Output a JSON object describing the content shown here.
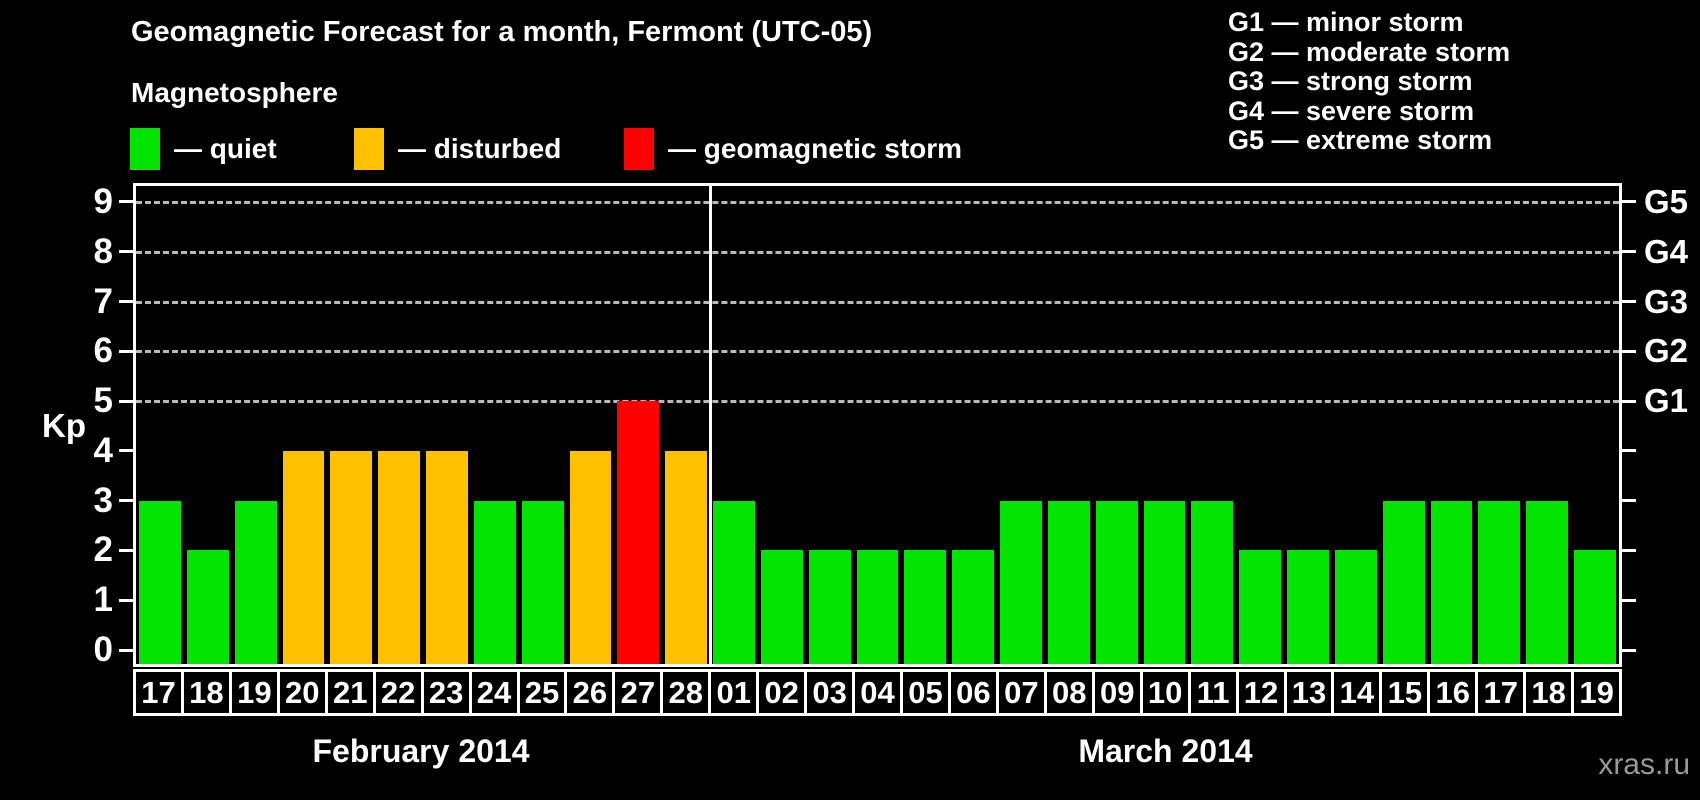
{
  "title": "Geomagnetic Forecast for a month, Fermont (UTC-05)",
  "subtitle": "Magnetosphere",
  "legend": {
    "items": [
      {
        "key": "quiet",
        "label": "— quiet"
      },
      {
        "key": "disturbed",
        "label": "— disturbed"
      },
      {
        "key": "storm",
        "label": "— geomagnetic storm"
      }
    ]
  },
  "g_legend": [
    "G1 — minor storm",
    "G2 — moderate storm",
    "G3 — strong storm",
    "G4 — severe storm",
    "G5 — extreme storm"
  ],
  "y_axis": {
    "label": "Kp",
    "ticks": [
      0,
      1,
      2,
      3,
      4,
      5,
      6,
      7,
      8,
      9
    ]
  },
  "right_axis": {
    "labels": {
      "5": "G1",
      "6": "G2",
      "7": "G3",
      "8": "G4",
      "9": "G5"
    }
  },
  "watermark": "xras.ru",
  "chart_data": {
    "type": "bar",
    "ylabel": "Kp",
    "ylim": [
      0,
      9
    ],
    "gridlines_at": [
      5,
      6,
      7,
      8,
      9
    ],
    "grid": "dashed",
    "states": {
      "quiet": "#00e400",
      "disturbed": "#ffc000",
      "storm": "#ff0000"
    },
    "months": [
      {
        "label": "February 2014",
        "days": [
          {
            "day": "17",
            "kp": 3,
            "state": "quiet"
          },
          {
            "day": "18",
            "kp": 2,
            "state": "quiet"
          },
          {
            "day": "19",
            "kp": 3,
            "state": "quiet"
          },
          {
            "day": "20",
            "kp": 4,
            "state": "disturbed"
          },
          {
            "day": "21",
            "kp": 4,
            "state": "disturbed"
          },
          {
            "day": "22",
            "kp": 4,
            "state": "disturbed"
          },
          {
            "day": "23",
            "kp": 4,
            "state": "disturbed"
          },
          {
            "day": "24",
            "kp": 3,
            "state": "quiet"
          },
          {
            "day": "25",
            "kp": 3,
            "state": "quiet"
          },
          {
            "day": "26",
            "kp": 4,
            "state": "disturbed"
          },
          {
            "day": "27",
            "kp": 5,
            "state": "storm"
          },
          {
            "day": "28",
            "kp": 4,
            "state": "disturbed"
          }
        ]
      },
      {
        "label": "March 2014",
        "days": [
          {
            "day": "01",
            "kp": 3,
            "state": "quiet"
          },
          {
            "day": "02",
            "kp": 2,
            "state": "quiet"
          },
          {
            "day": "03",
            "kp": 2,
            "state": "quiet"
          },
          {
            "day": "04",
            "kp": 2,
            "state": "quiet"
          },
          {
            "day": "05",
            "kp": 2,
            "state": "quiet"
          },
          {
            "day": "06",
            "kp": 2,
            "state": "quiet"
          },
          {
            "day": "07",
            "kp": 3,
            "state": "quiet"
          },
          {
            "day": "08",
            "kp": 3,
            "state": "quiet"
          },
          {
            "day": "09",
            "kp": 3,
            "state": "quiet"
          },
          {
            "day": "10",
            "kp": 3,
            "state": "quiet"
          },
          {
            "day": "11",
            "kp": 3,
            "state": "quiet"
          },
          {
            "day": "12",
            "kp": 2,
            "state": "quiet"
          },
          {
            "day": "13",
            "kp": 2,
            "state": "quiet"
          },
          {
            "day": "14",
            "kp": 2,
            "state": "quiet"
          },
          {
            "day": "15",
            "kp": 3,
            "state": "quiet"
          },
          {
            "day": "16",
            "kp": 3,
            "state": "quiet"
          },
          {
            "day": "17",
            "kp": 3,
            "state": "quiet"
          },
          {
            "day": "18",
            "kp": 3,
            "state": "quiet"
          },
          {
            "day": "19",
            "kp": 2,
            "state": "quiet"
          }
        ]
      }
    ]
  }
}
